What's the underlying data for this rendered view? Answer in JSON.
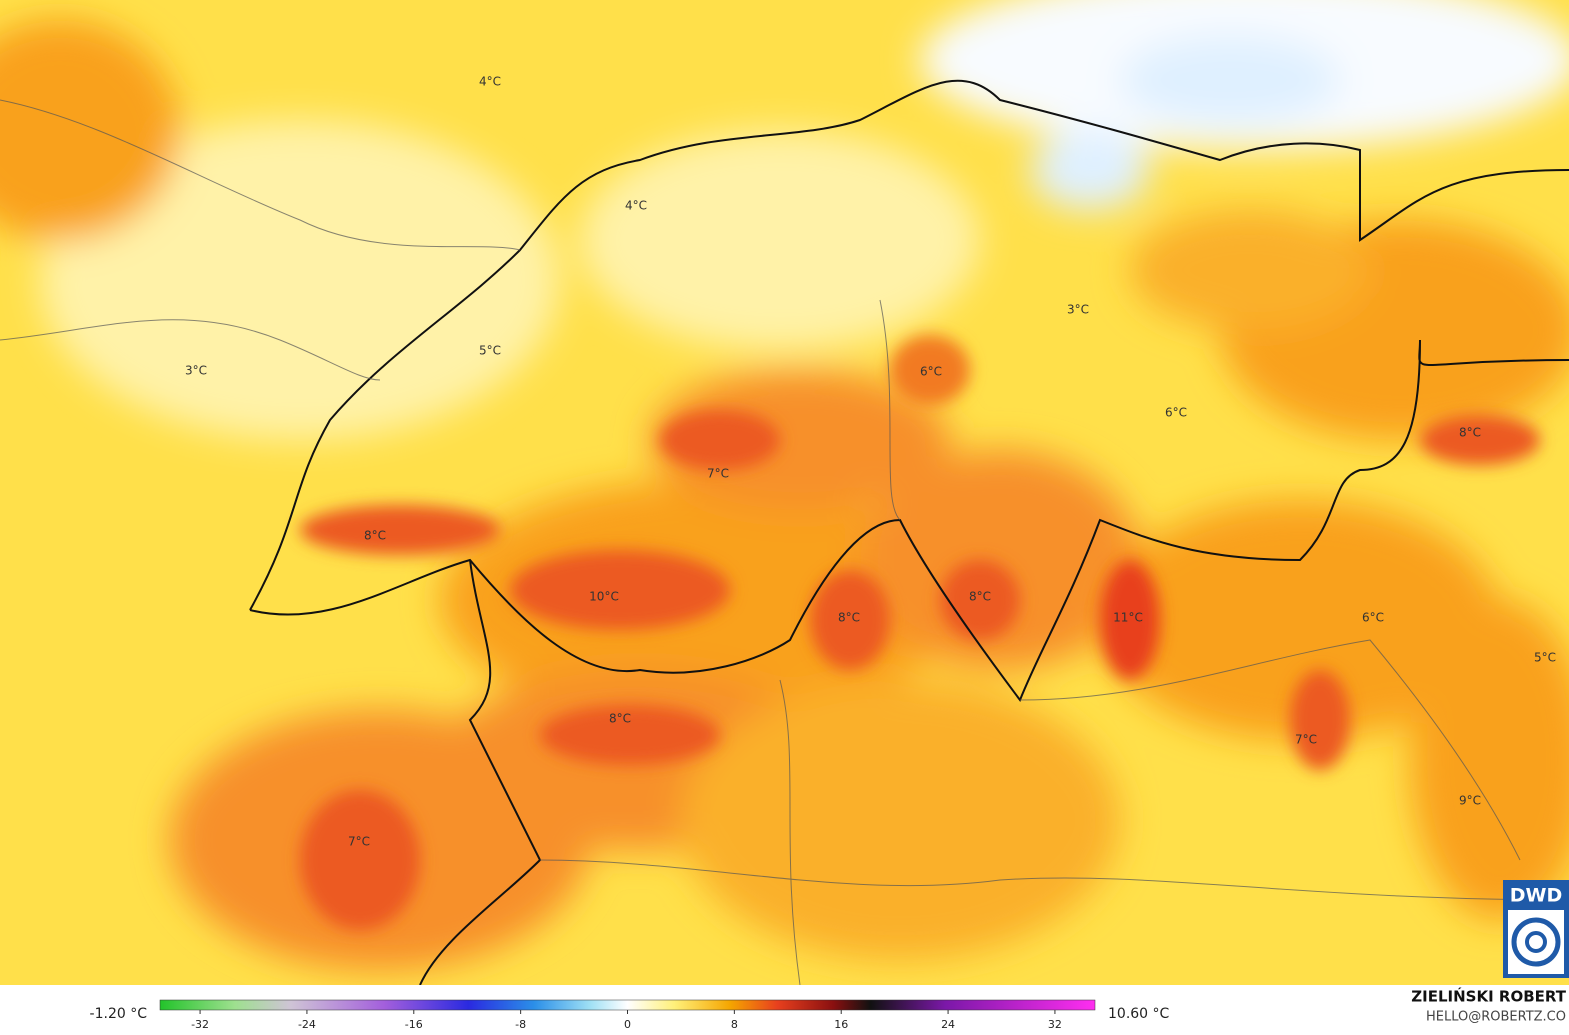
{
  "map": {
    "labels": [
      "4°C",
      "4°C",
      "3°C",
      "5°C",
      "3°C",
      "6°C",
      "6°C",
      "8°C",
      "7°C",
      "8°C",
      "10°C",
      "8°C",
      "8°C",
      "11°C",
      "6°C",
      "5°C",
      "8°C",
      "7°C",
      "9°C",
      "7°C"
    ],
    "logo": "DWD"
  },
  "legend": {
    "min_label": "-1.20 °C",
    "max_label": "10.60 °C",
    "range": [
      -35,
      35
    ],
    "ticks": [
      -32,
      -24,
      -16,
      -8,
      0,
      8,
      16,
      24,
      32
    ]
  },
  "credit": {
    "author": "ZIELIŃSKI ROBERT",
    "contact": "HELLO@ROBERTZ.CO"
  }
}
